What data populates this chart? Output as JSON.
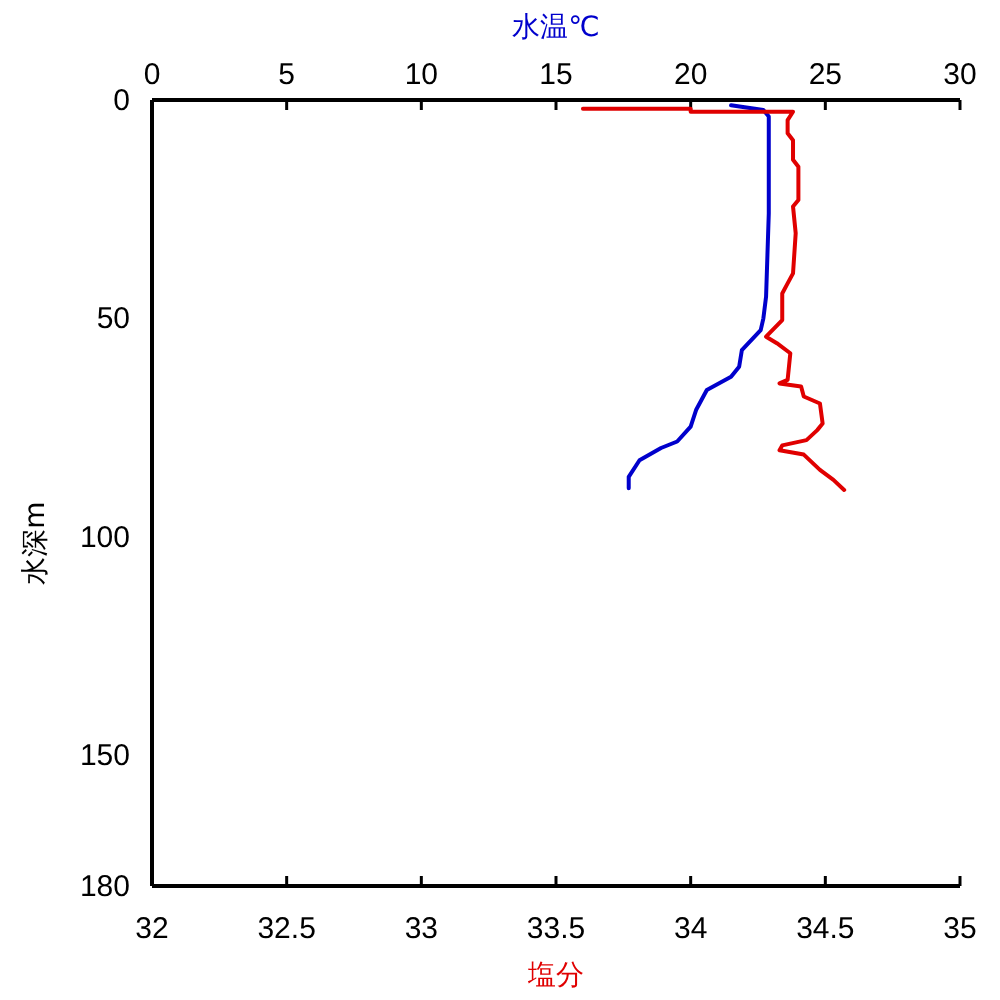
{
  "chart_data": {
    "type": "line",
    "xlabel": "塩分",
    "x2label": "水温℃",
    "ylabel": "水深m",
    "xlim": [
      32,
      35
    ],
    "xticks": [
      32,
      32.5,
      33,
      33.5,
      34,
      34.5,
      35
    ],
    "x2lim": [
      0,
      30
    ],
    "x2ticks": [
      0,
      5,
      10,
      15,
      20,
      25,
      30
    ],
    "ylim": [
      180,
      0
    ],
    "yticks": [
      0,
      50,
      100,
      150,
      180
    ],
    "series": [
      {
        "color": "#0000cc",
        "axis": "x2",
        "x": [
          21.5,
          22.7,
          22.9,
          22.9,
          22.8,
          22.7,
          22.6,
          21.9,
          21.8,
          21.5,
          20.6,
          20.2,
          20.0,
          19.5,
          18.9,
          18.1,
          17.7,
          17.7
        ],
        "values": [
          1.2,
          2.3,
          3.8,
          26,
          45,
          50,
          52.7,
          57.3,
          61.1,
          63.4,
          66.4,
          71.0,
          74.8,
          78.2,
          79.7,
          82.5,
          86.3,
          88.9
        ]
      },
      {
        "color": "#e00000",
        "x": [
          33.6,
          34.0,
          34.0,
          34.38,
          34.36,
          34.36,
          34.38,
          34.38,
          34.4,
          34.4,
          34.38,
          34.39,
          34.38,
          34.36,
          34.34,
          34.34,
          34.28,
          34.32,
          34.37,
          34.36,
          34.33,
          34.41,
          34.42,
          34.48,
          34.49,
          34.47,
          34.43,
          34.34,
          34.33,
          34.42,
          34.48,
          34.53,
          34.57
        ],
        "values": [
          2.0,
          2.0,
          2.7,
          2.7,
          4.6,
          7.6,
          9.2,
          13.7,
          15.3,
          22.9,
          24.4,
          30.5,
          39.7,
          42.0,
          44.3,
          50.4,
          54.2,
          55.7,
          58.0,
          64.1,
          64.9,
          65.6,
          67.9,
          69.5,
          74.1,
          75.6,
          77.9,
          79.1,
          80.2,
          81.2,
          84.7,
          87.0,
          89.3
        ]
      }
    ]
  }
}
